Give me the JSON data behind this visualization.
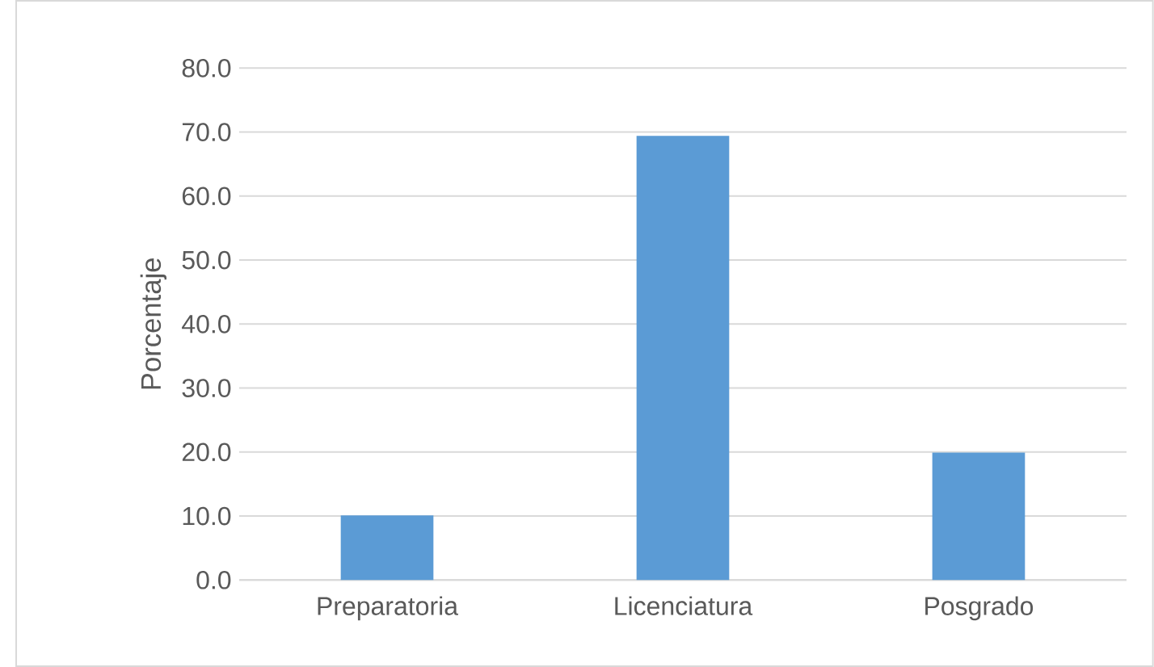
{
  "chart_data": {
    "type": "bar",
    "ylabel": "Porcentaje",
    "categories": [
      "Preparatoria",
      "Licenciatura",
      "Posgrado"
    ],
    "values": [
      10.1,
      69.4,
      19.9
    ],
    "color": "#5b9bd5",
    "ylim": [
      0,
      80
    ],
    "yticks": [
      {
        "value": 0,
        "label": "0.0"
      },
      {
        "value": 10,
        "label": "10.0"
      },
      {
        "value": 20,
        "label": "20.0"
      },
      {
        "value": 30,
        "label": "30.0"
      },
      {
        "value": 40,
        "label": "40.0"
      },
      {
        "value": 50,
        "label": "50.0"
      },
      {
        "value": 60,
        "label": "60.0"
      },
      {
        "value": 70,
        "label": "70.0"
      },
      {
        "value": 80,
        "label": "80.0"
      }
    ],
    "grid": "y"
  }
}
